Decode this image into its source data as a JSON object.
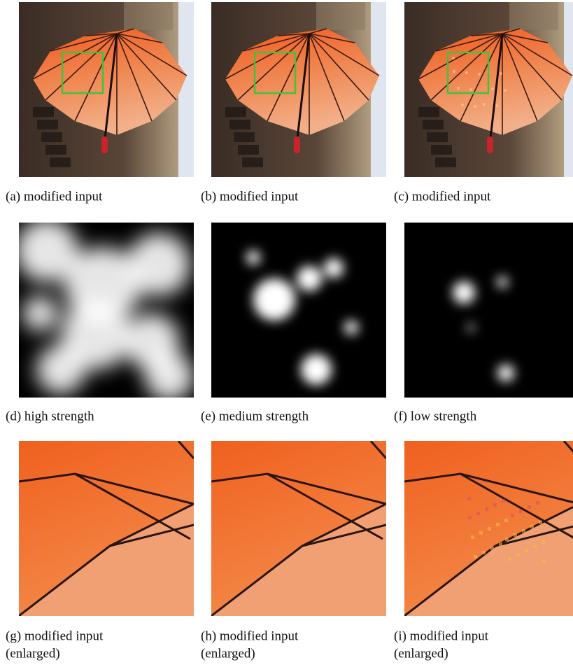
{
  "panels": [
    {
      "caption": [
        "(a) modified input"
      ]
    },
    {
      "caption": [
        "(b) modified input"
      ]
    },
    {
      "caption": [
        "(c) modified input"
      ]
    },
    {
      "caption": [
        "(d) high strength"
      ]
    },
    {
      "caption": [
        "(e) medium strength"
      ]
    },
    {
      "caption": [
        "(f) low strength"
      ]
    },
    {
      "caption": [
        "(g) modified input",
        "(enlarged)"
      ]
    },
    {
      "caption": [
        "(h) modified input",
        "(enlarged)"
      ]
    },
    {
      "caption": [
        "(i) modified input",
        "(enlarged)"
      ]
    }
  ]
}
